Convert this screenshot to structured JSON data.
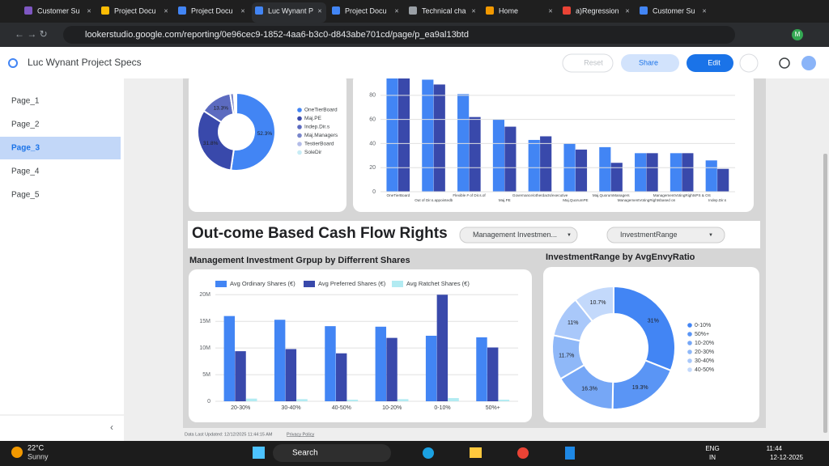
{
  "browser": {
    "tabs": [
      "Customer Su",
      "Project Docu",
      "Project Docu",
      "Luc Wynant P",
      "Project Docu",
      "Technical cha",
      "Home",
      "a)Regression",
      "Customer Su"
    ],
    "active_tab": 3,
    "url": "lookerstudio.google.com/reporting/0e96cec9-1852-4aa6-b3c0-d843abe701cd/page/p_ea9al13btd",
    "profile": "M"
  },
  "app": {
    "title": "Luc Wynant Project Specs",
    "reset": "Reset",
    "share": "Share",
    "edit": "Edit"
  },
  "sidebar": {
    "pages": [
      "Page_1",
      "Page_2",
      "Page_3",
      "Page_4",
      "Page_5"
    ],
    "selected": 2
  },
  "report": {
    "charts": [
      {
        "type": "donut",
        "categories": [
          "OneTierBoard",
          "Maj.PE",
          "Indep.Dir.s",
          "Maj.Managers",
          "TestierBoard",
          "SoleDir"
        ],
        "values": [
          52.3,
          31.8,
          13.3,
          1.5,
          0.7,
          0.4
        ],
        "value_labels": [
          "52.3%",
          "31.8%",
          "13.3%",
          null,
          null,
          null
        ],
        "colors": [
          "#4285f4",
          "#3949ab",
          "#5c6bc0",
          "#7986cb",
          "#b3bce8",
          "#c7ecf5"
        ]
      },
      {
        "type": "bar",
        "categories": [
          "OneTierBoard",
          "Out of Dir.s.appointedb",
          "Flexible # of Dir.s.of",
          "Maj.PE",
          "Governance/otherdacts/executive",
          "Maj.QuorumPE",
          "Maj.QuorumManagers",
          "ManagementVotingRightsbased on",
          "ManagementVotingRightsPS & OS",
          "Indep.Dir.s"
        ],
        "series": [
          {
            "color": "#4285f4",
            "values": [
              97,
              93,
              81,
              60,
              43,
              40,
              37,
              32,
              32,
              26
            ]
          },
          {
            "color": "#3949ab",
            "values": [
              97,
              89,
              62,
              54,
              46,
              35,
              24,
              32,
              32,
              19
            ]
          }
        ],
        "ylim": [
          0,
          95
        ],
        "yticks": [
          0,
          20,
          40,
          60,
          80
        ],
        "grid": true
      },
      {
        "type": "bar",
        "title": "Management Investment Grpup by Differrent Shares",
        "categories": [
          "20-30%",
          "30-40%",
          "40-50%",
          "10-20%",
          "0-10%",
          "50%+"
        ],
        "series": [
          {
            "name": "Avg Ordinary Shares (€)",
            "color": "#4285f4",
            "values": [
              16000000,
              15300000,
              14100000,
              14000000,
              12300000,
              12000000
            ]
          },
          {
            "name": "Avg Preferred Shares (€)",
            "color": "#3949ab",
            "values": [
              9400000,
              9800000,
              9000000,
              11900000,
              20000000,
              10100000
            ]
          },
          {
            "name": "Avg Ratchet Shares (€)",
            "color": "#b2ebf2",
            "values": [
              500000,
              400000,
              300000,
              400000,
              600000,
              300000
            ]
          }
        ],
        "ylim": [
          0,
          20500000
        ],
        "yticks": [
          0,
          {
            "value": 5000000,
            "label": "5M"
          },
          {
            "value": 10000000,
            "label": "10M"
          },
          {
            "value": 15000000,
            "label": "15M"
          },
          {
            "value": 20000000,
            "label": "20M"
          }
        ],
        "grid": true
      },
      {
        "type": "donut",
        "title": "InvestmentRange by AvgEnvyRatio",
        "categories": [
          "0-10%",
          "50%+",
          "10-20%",
          "20-30%",
          "30-40%",
          "40-50%"
        ],
        "values": [
          31,
          19.3,
          16.3,
          11.7,
          11,
          10.7
        ],
        "value_labels": [
          "31%",
          "19.3%",
          "16.3%",
          "11.7%",
          "11%",
          "10.7%"
        ],
        "colors": [
          "#4285f4",
          "#5a95f5",
          "#76a7f6",
          "#8fb8f8",
          "#a9c8fa",
          "#c3d9fb"
        ]
      }
    ],
    "banner": {
      "title": "Out-come Based Cash Flow Rights",
      "filters": [
        "Management Investmen...",
        "InvestmentRange"
      ]
    },
    "footer": {
      "updated": "Data Last Updated: 12/12/2025 11:44:15 AM",
      "privacy": "Privacy Policy"
    }
  },
  "taskbar": {
    "temperature": "22°C",
    "weather": "Sunny",
    "search": "Search",
    "language": "ENG",
    "region": "IN",
    "time": "11:44",
    "date": "12-12-2025"
  }
}
